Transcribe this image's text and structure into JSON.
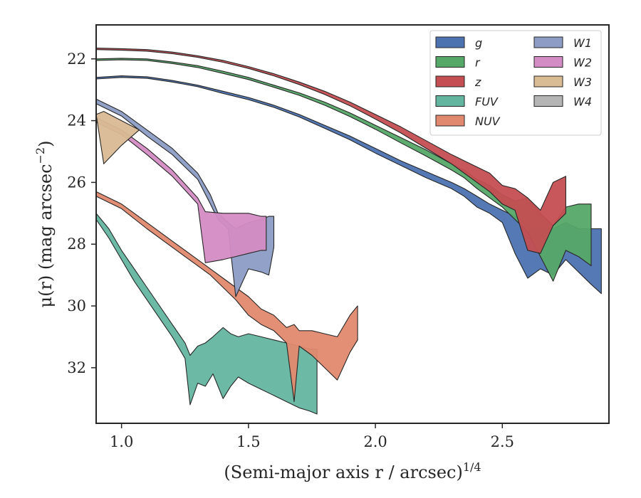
{
  "chart_data": {
    "type": "area",
    "xlabel": "(Semi-major axis r / arcsec)",
    "xlabel_superscript": "1/4",
    "ylabel_main": "μ(r) (mag arcsec",
    "ylabel_superscript": "−2",
    "ylabel_close": ")",
    "xlim": [
      0.9,
      2.92
    ],
    "ylim": [
      33.8,
      20.9
    ],
    "y_inverted": true,
    "grid": false,
    "legend_position": "top-right",
    "legend_columns": 2,
    "x_ticks": [
      1.0,
      1.5,
      2.0,
      2.5
    ],
    "x_tick_labels": [
      "1.0",
      "1.5",
      "2.0",
      "2.5"
    ],
    "y_ticks": [
      22,
      24,
      26,
      28,
      30,
      32
    ],
    "y_tick_labels": [
      "22",
      "24",
      "26",
      "28",
      "30",
      "32"
    ],
    "series": [
      {
        "name": "g",
        "color": "#4c72b0",
        "x": [
          0.9,
          1.0,
          1.1,
          1.2,
          1.3,
          1.4,
          1.5,
          1.6,
          1.7,
          1.8,
          1.9,
          2.0,
          2.1,
          2.2,
          2.3,
          2.35,
          2.4,
          2.45,
          2.5,
          2.55,
          2.6,
          2.65,
          2.7,
          2.75,
          2.8,
          2.85,
          2.89
        ],
        "y_top": [
          22.6,
          22.55,
          22.58,
          22.7,
          22.85,
          23.05,
          23.25,
          23.5,
          23.8,
          24.15,
          24.5,
          24.9,
          25.3,
          25.65,
          26.0,
          26.2,
          26.45,
          26.7,
          26.9,
          27.1,
          27.35,
          27.5,
          27.5,
          27.3,
          27.5,
          27.5,
          27.5
        ],
        "y_bottom": [
          22.65,
          22.6,
          22.63,
          22.75,
          22.9,
          23.12,
          23.32,
          23.57,
          23.88,
          24.25,
          24.62,
          25.05,
          25.45,
          25.85,
          26.2,
          26.45,
          26.8,
          27.0,
          27.3,
          28.3,
          29.1,
          28.8,
          29.0,
          28.5,
          28.9,
          29.3,
          29.6
        ]
      },
      {
        "name": "r",
        "color": "#55a868",
        "x": [
          0.9,
          1.0,
          1.1,
          1.2,
          1.3,
          1.4,
          1.5,
          1.6,
          1.7,
          1.8,
          1.9,
          2.0,
          2.1,
          2.2,
          2.3,
          2.35,
          2.4,
          2.45,
          2.5,
          2.55,
          2.6,
          2.65,
          2.7,
          2.75,
          2.8,
          2.85
        ],
        "y_top": [
          22.0,
          21.98,
          22.0,
          22.1,
          22.22,
          22.4,
          22.6,
          22.85,
          23.1,
          23.4,
          23.75,
          24.15,
          24.55,
          24.95,
          25.4,
          25.6,
          25.9,
          26.1,
          26.4,
          26.6,
          26.5,
          27.0,
          27.4,
          26.8,
          26.7,
          26.7
        ],
        "y_bottom": [
          22.05,
          22.03,
          22.05,
          22.15,
          22.28,
          22.47,
          22.67,
          22.92,
          23.18,
          23.5,
          23.87,
          24.28,
          24.72,
          25.15,
          25.6,
          25.85,
          26.2,
          26.5,
          26.8,
          27.2,
          27.6,
          28.4,
          29.2,
          28.2,
          28.4,
          28.7
        ]
      },
      {
        "name": "z",
        "color": "#c44e52",
        "x": [
          0.9,
          1.0,
          1.1,
          1.2,
          1.3,
          1.4,
          1.5,
          1.6,
          1.7,
          1.8,
          1.9,
          2.0,
          2.1,
          2.2,
          2.3,
          2.35,
          2.4,
          2.45,
          2.5,
          2.55,
          2.6,
          2.65,
          2.7,
          2.75
        ],
        "y_top": [
          21.65,
          21.67,
          21.7,
          21.78,
          21.9,
          22.05,
          22.25,
          22.48,
          22.75,
          23.05,
          23.4,
          23.8,
          24.2,
          24.65,
          25.1,
          25.3,
          25.5,
          25.7,
          26.1,
          26.2,
          26.5,
          26.9,
          26.0,
          25.8
        ],
        "y_bottom": [
          21.7,
          21.72,
          21.75,
          21.83,
          21.95,
          22.11,
          22.31,
          22.55,
          22.83,
          23.15,
          23.52,
          23.95,
          24.4,
          24.9,
          25.4,
          25.7,
          26.0,
          26.3,
          26.7,
          26.9,
          28.2,
          28.3,
          27.4,
          27.0
        ]
      },
      {
        "name": "FUV",
        "color": "#64b5a0",
        "x": [
          0.9,
          0.95,
          1.0,
          1.05,
          1.1,
          1.15,
          1.2,
          1.25,
          1.27,
          1.3,
          1.33,
          1.36,
          1.4,
          1.43,
          1.46,
          1.5,
          1.55,
          1.6,
          1.65,
          1.7,
          1.74,
          1.77
        ],
        "y_top": [
          27.0,
          27.5,
          28.2,
          28.8,
          29.4,
          30.0,
          30.6,
          31.2,
          31.6,
          31.3,
          31.2,
          31.0,
          30.7,
          30.9,
          31.0,
          30.9,
          31.0,
          31.1,
          31.2,
          31.3,
          31.4,
          31.4
        ],
        "y_bottom": [
          27.2,
          27.8,
          28.5,
          29.2,
          29.8,
          30.4,
          31.0,
          31.7,
          33.2,
          32.5,
          32.6,
          32.2,
          33.0,
          32.6,
          32.3,
          32.5,
          32.7,
          32.9,
          33.1,
          33.3,
          33.4,
          33.5
        ]
      },
      {
        "name": "NUV",
        "color": "#e1896e",
        "x": [
          0.9,
          1.0,
          1.1,
          1.2,
          1.3,
          1.35,
          1.4,
          1.45,
          1.5,
          1.55,
          1.6,
          1.65,
          1.68,
          1.7,
          1.75,
          1.8,
          1.85,
          1.9,
          1.93
        ],
        "y_top": [
          26.3,
          26.7,
          27.3,
          27.9,
          28.5,
          28.8,
          29.1,
          29.4,
          29.7,
          30.1,
          30.3,
          30.7,
          30.6,
          30.8,
          30.8,
          30.9,
          31.0,
          30.3,
          30.0
        ],
        "y_bottom": [
          26.45,
          26.85,
          27.5,
          28.1,
          28.7,
          29.0,
          29.4,
          29.8,
          30.3,
          30.6,
          30.8,
          31.2,
          33.1,
          31.3,
          31.6,
          32.0,
          32.4,
          31.5,
          31.1
        ]
      },
      {
        "name": "W1",
        "color": "#8c9cc4",
        "x": [
          0.9,
          1.0,
          1.1,
          1.2,
          1.3,
          1.35,
          1.38,
          1.42,
          1.45,
          1.5,
          1.55,
          1.58,
          1.6
        ],
        "y_top": [
          23.3,
          23.7,
          24.3,
          24.9,
          25.7,
          26.4,
          27.0,
          27.3,
          27.5,
          27.3,
          27.2,
          27.1,
          27.1
        ],
        "y_bottom": [
          23.45,
          23.85,
          24.5,
          25.1,
          25.9,
          26.7,
          27.2,
          27.5,
          29.7,
          28.8,
          28.9,
          29.0,
          28.1
        ]
      },
      {
        "name": "W2",
        "color": "#d48cc4",
        "x": [
          0.9,
          1.0,
          1.1,
          1.2,
          1.3,
          1.33,
          1.4,
          1.45,
          1.5,
          1.55,
          1.57
        ],
        "y_top": [
          23.9,
          24.3,
          24.9,
          25.6,
          26.5,
          26.95,
          27.0,
          27.0,
          27.0,
          27.1,
          27.1
        ],
        "y_bottom": [
          24.05,
          24.45,
          25.1,
          25.8,
          26.7,
          28.6,
          28.5,
          28.4,
          28.3,
          28.2,
          28.2
        ]
      },
      {
        "name": "W3",
        "color": "#d9bb94",
        "x": [
          0.9,
          0.93,
          1.0,
          1.07,
          1.0,
          0.93
        ],
        "y_top": [
          23.8,
          23.7,
          24.0,
          24.3,
          24.8,
          25.4
        ],
        "y_bottom": [
          25.3,
          25.4,
          25.0,
          24.8,
          24.8,
          25.4
        ],
        "shape": "closed_polygon"
      },
      {
        "name": "W4",
        "color": "#b5b5b5",
        "x": [],
        "y_top": [],
        "y_bottom": []
      }
    ]
  }
}
